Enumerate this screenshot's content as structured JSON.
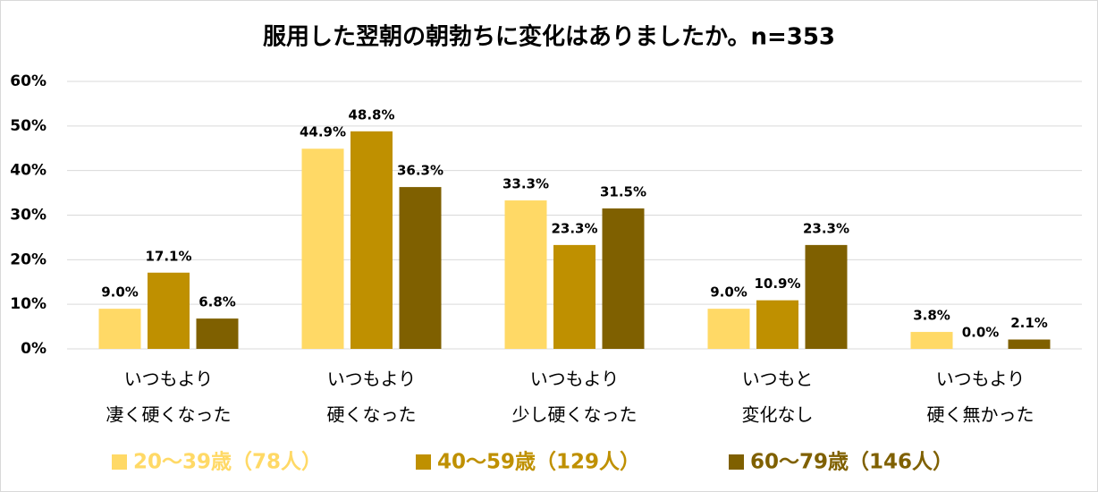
{
  "chart_data": {
    "type": "bar",
    "title": "服用した翌朝の朝勃ちに変化はありましたか。n=353",
    "categories": [
      [
        "いつもより",
        "凄く硬くなった"
      ],
      [
        "いつもより",
        "硬くなった"
      ],
      [
        "いつもより",
        "少し硬くなった"
      ],
      [
        "いつもと",
        "変化なし"
      ],
      [
        "いつもより",
        "硬く無かった"
      ]
    ],
    "series": [
      {
        "name": "20〜39歳（78人）",
        "color": "#FFD966",
        "values": [
          9.0,
          44.9,
          33.3,
          9.0,
          3.8
        ],
        "value_labels": [
          "9.0%",
          "44.9%",
          "33.3%",
          "9.0%",
          "3.8%"
        ]
      },
      {
        "name": "40〜59歳（129人）",
        "color": "#BF9000",
        "values": [
          17.1,
          48.8,
          23.3,
          10.9,
          0.0
        ],
        "value_labels": [
          "17.1%",
          "48.8%",
          "23.3%",
          "10.9%",
          "0.0%"
        ]
      },
      {
        "name": "60〜79歳（146人）",
        "color": "#7F6000",
        "values": [
          6.8,
          36.3,
          31.5,
          23.3,
          2.1
        ],
        "value_labels": [
          "6.8%",
          "36.3%",
          "31.5%",
          "23.3%",
          "2.1%"
        ]
      }
    ],
    "ylim": [
      0,
      60
    ],
    "yticks": [
      {
        "value": 0,
        "label": "0%"
      },
      {
        "value": 10,
        "label": "10%"
      },
      {
        "value": 20,
        "label": "20%"
      },
      {
        "value": 30,
        "label": "30%"
      },
      {
        "value": 40,
        "label": "40%"
      },
      {
        "value": 50,
        "label": "50%"
      },
      {
        "value": 60,
        "label": "60%"
      }
    ],
    "grid": true,
    "legend": "bottom"
  }
}
